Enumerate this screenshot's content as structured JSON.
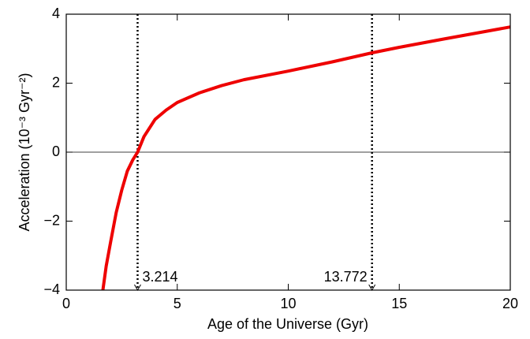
{
  "chart_data": {
    "type": "line",
    "xlabel": "Age of the Universe (Gyr)",
    "ylabel": "Acceleration  (10⁻³ Gyr⁻²)",
    "series": [
      {
        "color": "#ee0000",
        "x": [
          1.65,
          1.8,
          2,
          2.25,
          2.5,
          2.75,
          3,
          3.214,
          3.5,
          4,
          4.5,
          5,
          6,
          7,
          8,
          10,
          12,
          13.772,
          15,
          17,
          20
        ],
        "values": [
          -4,
          -3.3,
          -2.6,
          -1.75,
          -1.1,
          -0.55,
          -0.22,
          0,
          0.45,
          0.95,
          1.22,
          1.44,
          1.72,
          1.93,
          2.1,
          2.35,
          2.62,
          2.88,
          3.04,
          3.28,
          3.63
        ]
      }
    ],
    "vlines": [
      3.214,
      13.772
    ],
    "hline": 0,
    "xlim": [
      0,
      20
    ],
    "xticks": [
      0,
      5,
      10,
      15,
      20
    ],
    "ylim": [
      -4,
      4
    ],
    "yticks": [
      {
        "value": -4,
        "label": "−4"
      },
      {
        "value": -2,
        "label": "−2"
      },
      0,
      2,
      4
    ]
  }
}
